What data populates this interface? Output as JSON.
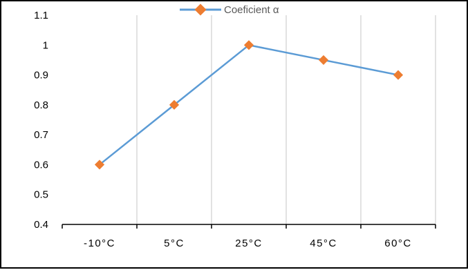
{
  "chart_data": {
    "type": "line",
    "categories": [
      "-10°C",
      "5°C",
      "25°C",
      "45°C",
      "60°C"
    ],
    "series": [
      {
        "name": "Coeficient  α",
        "values": [
          0.6,
          0.8,
          1.0,
          0.95,
          0.9
        ]
      }
    ],
    "ylim": [
      0.4,
      1.1
    ],
    "yticks": [
      "0.4",
      "0.5",
      "0.6",
      "0.7",
      "0.8",
      "0.9",
      "1",
      "1.1"
    ],
    "ytick_values": [
      0.4,
      0.5,
      0.6,
      0.7,
      0.8,
      0.9,
      1.0,
      1.1
    ],
    "grid": "vertical",
    "legend": "top-center",
    "colors": {
      "line": "#5b9bd5",
      "marker": "#ed7d31",
      "grid": "#d9d9d9",
      "axis": "#000000"
    }
  }
}
